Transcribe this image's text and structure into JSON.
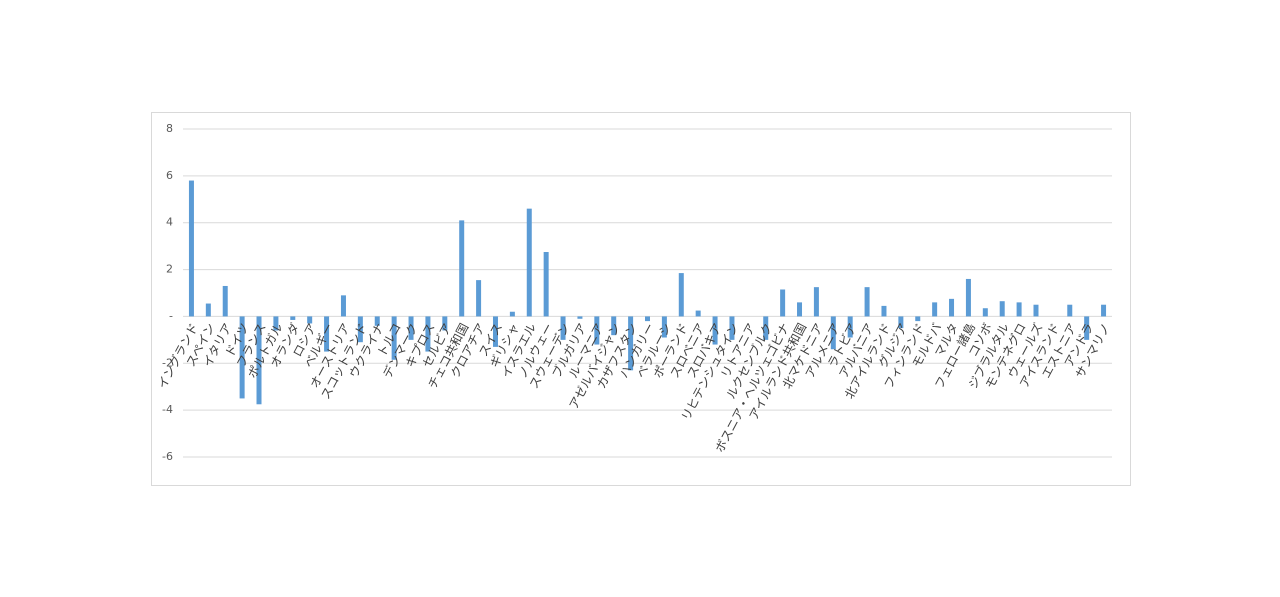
{
  "chart_data": {
    "type": "bar",
    "categories": [
      "イングランド",
      "スペイン",
      "イタリア",
      "ドイツ",
      "フランス",
      "ポルトガル",
      "オランダ",
      "ロシア",
      "ベルギー",
      "オーストリア",
      "スコットランド",
      "ウクライナ",
      "トルコ",
      "デンマーク",
      "キプロス",
      "セルビア",
      "チェコ共和国",
      "クロアチア",
      "スイス",
      "ギリシャ",
      "イスラエル",
      "ノルウェー",
      "スウェーデン",
      "ブルガリア",
      "ルーマニア",
      "アゼルバイジャン",
      "カザフスタン",
      "ハンガリー",
      "ベラルーシ",
      "ポーランド",
      "スロベニア",
      "スロバキア",
      "リヒテンシュタイン",
      "リトアニア",
      "ルクセンブルク",
      "ボスニア・ヘルツェゴビナ",
      "アイルランド共和国",
      "北マケドニア",
      "アルメニア",
      "ラトビア",
      "アルバニア",
      "北アイルランド",
      "グルジア",
      "フィンランド",
      "モルドバ",
      "マルタ",
      "フェロー諸島",
      "コソボ",
      "ジブラルタル",
      "モンテネグロ",
      "ウェールズ",
      "アイスランド",
      "エストニア",
      "アンドラ",
      "サンマリノ"
    ],
    "values": [
      5.8,
      0.55,
      1.3,
      -3.5,
      -3.75,
      -0.6,
      -0.15,
      -0.3,
      -1.5,
      0.9,
      -1.1,
      -0.4,
      -1.85,
      -1.0,
      -1.5,
      -0.6,
      4.1,
      1.55,
      -1.3,
      0.2,
      4.6,
      2.75,
      -1.0,
      -0.1,
      -1.2,
      -0.8,
      -2.3,
      -0.2,
      -0.9,
      1.85,
      0.25,
      -1.2,
      -1.0,
      0,
      -1.0,
      1.15,
      0.6,
      1.25,
      -1.4,
      -0.9,
      1.25,
      0.45,
      -0.5,
      -0.2,
      0.6,
      0.75,
      1.6,
      0.35,
      0.65,
      0.6,
      0.5,
      0,
      0.5,
      -1.0,
      0.5
    ],
    "color": "#5b9bd5",
    "ylim": [
      -6,
      8
    ],
    "yticks": [
      -6,
      -4,
      -2,
      {
        "value": 0,
        "label": "-"
      },
      2,
      4,
      6,
      8
    ],
    "grid": true
  }
}
